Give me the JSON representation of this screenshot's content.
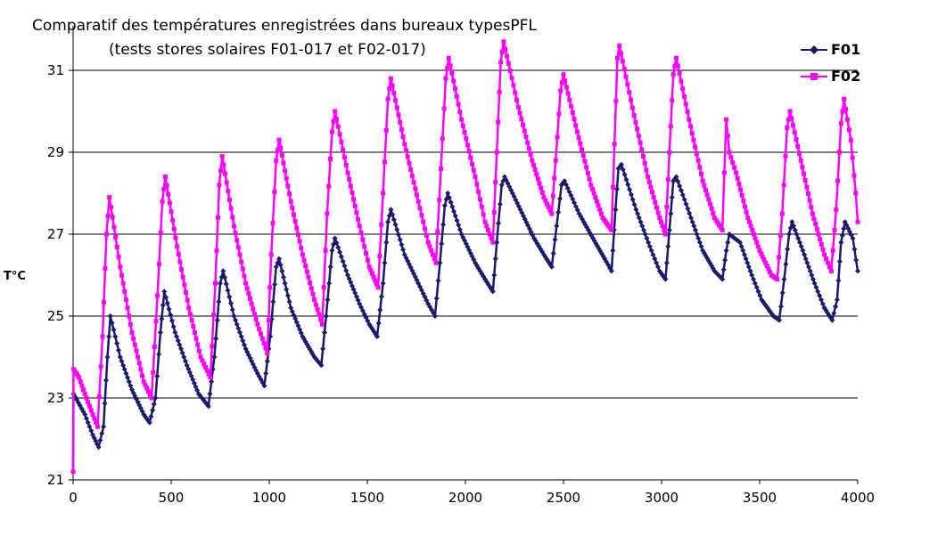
{
  "chart_data": {
    "type": "line",
    "title": [
      "Comparatif des températures enregistrées dans bureaux typesPFL",
      "(tests stores solaires F01-017 et F02-017)"
    ],
    "ylabel": "T°C",
    "xlabel": "",
    "xlim": [
      0,
      4000
    ],
    "ylim": [
      21,
      32
    ],
    "xticks": [
      0,
      500,
      1000,
      1500,
      2000,
      2500,
      3000,
      3500,
      4000
    ],
    "yticks": [
      21,
      23,
      25,
      27,
      29,
      31
    ],
    "xtick_labels": [
      "0",
      "500",
      "1000",
      "1500",
      "2000",
      "2500",
      "3000",
      "3500",
      "4000"
    ],
    "ytick_labels": [
      "21",
      "23",
      "25",
      "27",
      "29",
      "31"
    ],
    "grid": "horizontal",
    "legend_position": "top-right",
    "series": [
      {
        "name": "F01",
        "color": "#1a1a6e",
        "marker": "diamond",
        "points": [
          [
            0,
            21.2
          ],
          [
            2,
            23.1
          ],
          [
            60,
            22.6
          ],
          [
            100,
            22.1
          ],
          [
            130,
            21.8
          ],
          [
            155,
            22.3
          ],
          [
            175,
            24.0
          ],
          [
            190,
            25.0
          ],
          [
            240,
            24.0
          ],
          [
            300,
            23.2
          ],
          [
            360,
            22.6
          ],
          [
            390,
            22.4
          ],
          [
            420,
            23.0
          ],
          [
            445,
            24.6
          ],
          [
            465,
            25.6
          ],
          [
            520,
            24.6
          ],
          [
            580,
            23.8
          ],
          [
            640,
            23.1
          ],
          [
            690,
            22.8
          ],
          [
            720,
            24.0
          ],
          [
            750,
            25.8
          ],
          [
            765,
            26.1
          ],
          [
            820,
            25.0
          ],
          [
            880,
            24.2
          ],
          [
            940,
            23.6
          ],
          [
            975,
            23.3
          ],
          [
            1005,
            24.5
          ],
          [
            1035,
            26.2
          ],
          [
            1050,
            26.4
          ],
          [
            1110,
            25.2
          ],
          [
            1170,
            24.5
          ],
          [
            1230,
            24.0
          ],
          [
            1265,
            23.8
          ],
          [
            1290,
            25.0
          ],
          [
            1320,
            26.6
          ],
          [
            1335,
            26.9
          ],
          [
            1400,
            26.0
          ],
          [
            1460,
            25.3
          ],
          [
            1510,
            24.8
          ],
          [
            1550,
            24.5
          ],
          [
            1580,
            25.8
          ],
          [
            1605,
            27.3
          ],
          [
            1620,
            27.6
          ],
          [
            1690,
            26.5
          ],
          [
            1760,
            25.8
          ],
          [
            1810,
            25.3
          ],
          [
            1845,
            25.0
          ],
          [
            1870,
            26.3
          ],
          [
            1895,
            27.7
          ],
          [
            1910,
            28.0
          ],
          [
            1980,
            27.0
          ],
          [
            2050,
            26.3
          ],
          [
            2100,
            25.9
          ],
          [
            2140,
            25.6
          ],
          [
            2160,
            26.8
          ],
          [
            2185,
            28.2
          ],
          [
            2200,
            28.4
          ],
          [
            2280,
            27.6
          ],
          [
            2350,
            26.9
          ],
          [
            2400,
            26.5
          ],
          [
            2440,
            26.2
          ],
          [
            2465,
            27.2
          ],
          [
            2490,
            28.2
          ],
          [
            2505,
            28.3
          ],
          [
            2580,
            27.5
          ],
          [
            2650,
            26.9
          ],
          [
            2710,
            26.4
          ],
          [
            2745,
            26.1
          ],
          [
            2765,
            27.6
          ],
          [
            2780,
            28.6
          ],
          [
            2795,
            28.7
          ],
          [
            2870,
            27.6
          ],
          [
            2940,
            26.7
          ],
          [
            2990,
            26.1
          ],
          [
            3020,
            25.9
          ],
          [
            3040,
            27.1
          ],
          [
            3060,
            28.3
          ],
          [
            3075,
            28.4
          ],
          [
            3150,
            27.4
          ],
          [
            3210,
            26.6
          ],
          [
            3270,
            26.1
          ],
          [
            3310,
            25.9
          ],
          [
            3330,
            26.6
          ],
          [
            3345,
            27.0
          ],
          [
            3400,
            26.8
          ],
          [
            3460,
            26.0
          ],
          [
            3510,
            25.4
          ],
          [
            3570,
            25.0
          ],
          [
            3600,
            24.9
          ],
          [
            3625,
            25.9
          ],
          [
            3650,
            27.0
          ],
          [
            3665,
            27.3
          ],
          [
            3720,
            26.6
          ],
          [
            3780,
            25.8
          ],
          [
            3830,
            25.2
          ],
          [
            3870,
            24.9
          ],
          [
            3895,
            25.4
          ],
          [
            3915,
            26.8
          ],
          [
            3935,
            27.3
          ],
          [
            3975,
            26.9
          ],
          [
            4000,
            26.1
          ]
        ]
      },
      {
        "name": "F02",
        "color": "#ff00ff",
        "marker": "square",
        "points": [
          [
            0,
            21.2
          ],
          [
            2,
            23.7
          ],
          [
            30,
            23.5
          ],
          [
            60,
            23.1
          ],
          [
            100,
            22.6
          ],
          [
            125,
            22.3
          ],
          [
            150,
            24.5
          ],
          [
            170,
            27.0
          ],
          [
            185,
            27.9
          ],
          [
            240,
            26.2
          ],
          [
            300,
            24.6
          ],
          [
            360,
            23.4
          ],
          [
            400,
            23.0
          ],
          [
            430,
            25.5
          ],
          [
            455,
            27.8
          ],
          [
            470,
            28.4
          ],
          [
            530,
            26.7
          ],
          [
            590,
            25.2
          ],
          [
            650,
            24.0
          ],
          [
            700,
            23.5
          ],
          [
            725,
            25.8
          ],
          [
            745,
            28.2
          ],
          [
            760,
            28.9
          ],
          [
            820,
            27.2
          ],
          [
            880,
            25.8
          ],
          [
            940,
            24.8
          ],
          [
            990,
            24.1
          ],
          [
            1010,
            26.5
          ],
          [
            1035,
            28.8
          ],
          [
            1050,
            29.3
          ],
          [
            1110,
            27.8
          ],
          [
            1170,
            26.5
          ],
          [
            1230,
            25.4
          ],
          [
            1270,
            24.8
          ],
          [
            1295,
            27.5
          ],
          [
            1320,
            29.5
          ],
          [
            1335,
            30.0
          ],
          [
            1400,
            28.5
          ],
          [
            1460,
            27.2
          ],
          [
            1510,
            26.2
          ],
          [
            1555,
            25.7
          ],
          [
            1580,
            28.0
          ],
          [
            1605,
            30.3
          ],
          [
            1620,
            30.8
          ],
          [
            1690,
            29.2
          ],
          [
            1760,
            27.8
          ],
          [
            1810,
            26.8
          ],
          [
            1850,
            26.3
          ],
          [
            1875,
            28.6
          ],
          [
            1900,
            30.8
          ],
          [
            1915,
            31.3
          ],
          [
            1980,
            29.8
          ],
          [
            2050,
            28.4
          ],
          [
            2100,
            27.3
          ],
          [
            2140,
            26.8
          ],
          [
            2160,
            29.0
          ],
          [
            2180,
            31.2
          ],
          [
            2195,
            31.7
          ],
          [
            2270,
            30.1
          ],
          [
            2340,
            28.8
          ],
          [
            2400,
            27.9
          ],
          [
            2440,
            27.5
          ],
          [
            2460,
            28.8
          ],
          [
            2485,
            30.5
          ],
          [
            2500,
            30.9
          ],
          [
            2570,
            29.5
          ],
          [
            2640,
            28.2
          ],
          [
            2700,
            27.4
          ],
          [
            2745,
            27.1
          ],
          [
            2760,
            29.2
          ],
          [
            2775,
            31.3
          ],
          [
            2785,
            31.6
          ],
          [
            2860,
            29.9
          ],
          [
            2930,
            28.4
          ],
          [
            2990,
            27.4
          ],
          [
            3020,
            27.0
          ],
          [
            3040,
            29.0
          ],
          [
            3060,
            30.9
          ],
          [
            3075,
            31.3
          ],
          [
            3140,
            29.8
          ],
          [
            3210,
            28.3
          ],
          [
            3270,
            27.4
          ],
          [
            3310,
            27.1
          ],
          [
            3320,
            28.5
          ],
          [
            3330,
            29.8
          ],
          [
            3345,
            29.0
          ],
          [
            3380,
            28.5
          ],
          [
            3440,
            27.4
          ],
          [
            3500,
            26.6
          ],
          [
            3560,
            26.0
          ],
          [
            3590,
            25.9
          ],
          [
            3615,
            27.5
          ],
          [
            3640,
            29.6
          ],
          [
            3655,
            30.0
          ],
          [
            3710,
            28.8
          ],
          [
            3770,
            27.5
          ],
          [
            3830,
            26.5
          ],
          [
            3865,
            26.1
          ],
          [
            3890,
            27.6
          ],
          [
            3915,
            29.7
          ],
          [
            3930,
            30.3
          ],
          [
            3965,
            29.3
          ],
          [
            3990,
            28.0
          ],
          [
            4000,
            27.3
          ]
        ]
      }
    ]
  }
}
